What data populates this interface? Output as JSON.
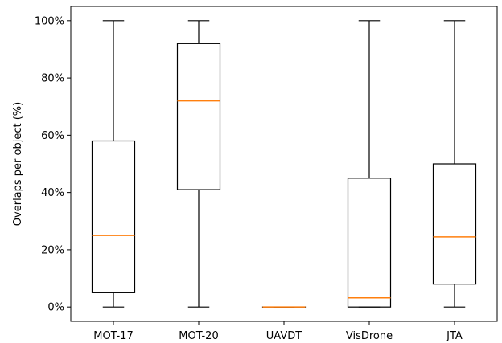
{
  "chart_data": {
    "type": "box",
    "title": "",
    "xlabel": "",
    "ylabel": "Overlaps per object (%)",
    "ylim": [
      -5,
      105
    ],
    "yticks": [
      {
        "value": 0,
        "label": "0%"
      },
      {
        "value": 20,
        "label": "20%"
      },
      {
        "value": 40,
        "label": "40%"
      },
      {
        "value": 60,
        "label": "60%"
      },
      {
        "value": 80,
        "label": "80%"
      },
      {
        "value": 100,
        "label": "100%"
      }
    ],
    "categories": [
      "MOT-17",
      "MOT-20",
      "UAVDT",
      "VisDrone",
      "JTA"
    ],
    "boxes": [
      {
        "category": "MOT-17",
        "whisker_low": 0,
        "q1": 5,
        "median": 25,
        "q3": 58,
        "whisker_high": 100
      },
      {
        "category": "MOT-20",
        "whisker_low": 0,
        "q1": 41,
        "median": 72,
        "q3": 92,
        "whisker_high": 100
      },
      {
        "category": "UAVDT",
        "whisker_low": 0,
        "q1": 0,
        "median": 0,
        "q3": 0,
        "whisker_high": 0
      },
      {
        "category": "VisDrone",
        "whisker_low": 0,
        "q1": 0,
        "median": 3.2,
        "q3": 45,
        "whisker_high": 100
      },
      {
        "category": "JTA",
        "whisker_low": 0,
        "q1": 8,
        "median": 24.5,
        "q3": 50,
        "whisker_high": 100
      }
    ],
    "colors": {
      "box": "#000000",
      "median": "#ff7f0e"
    },
    "grid": false,
    "legend": "none"
  }
}
